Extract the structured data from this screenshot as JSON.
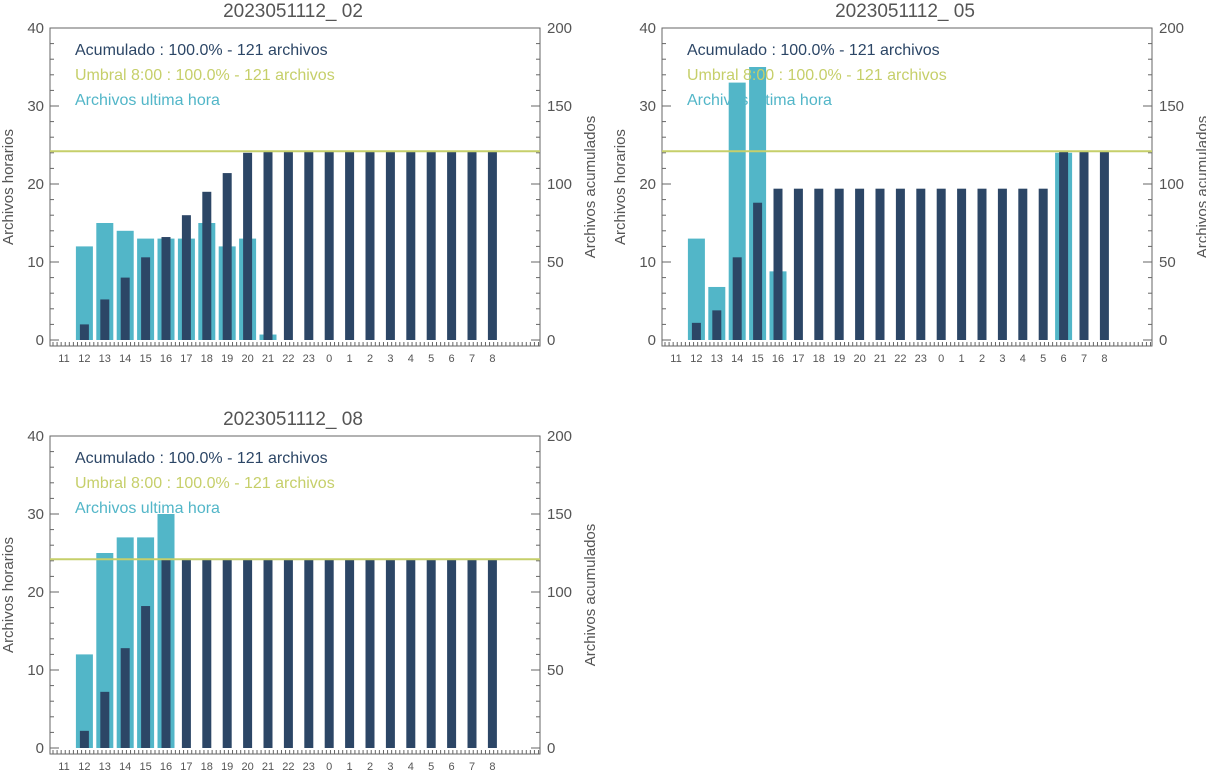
{
  "colors": {
    "hourly": "#52b6c8",
    "accumulated": "#2c4666",
    "threshold": "#c6cf6a",
    "axis": "#666666",
    "text": "#555555"
  },
  "chart_data": [
    {
      "type": "bar",
      "title": "2023051112_ 02",
      "ylabel_left": "Archivos horarios",
      "ylabel_right": "Archivos acumulados",
      "ylim_left": [
        0,
        40
      ],
      "ylim_right": [
        0,
        200
      ],
      "yticks_left": [
        "0",
        "10",
        "20",
        "30",
        "40"
      ],
      "yticks_right": [
        "0",
        "50",
        "100",
        "150",
        "200"
      ],
      "categories": [
        "11",
        "12",
        "13",
        "14",
        "15",
        "16",
        "17",
        "18",
        "19",
        "20",
        "21",
        "22",
        "23",
        "0",
        "1",
        "2",
        "3",
        "4",
        "5",
        "6",
        "7",
        "8"
      ],
      "legend": [
        {
          "text": "Acumulado : 100.0% - 121 archivos",
          "color": "accumulated"
        },
        {
          "text": "Umbral 8:00 : 100.0% - 121 archivos",
          "color": "threshold"
        },
        {
          "text": "Archivos ultima hora",
          "color": "hourly"
        }
      ],
      "threshold": 121,
      "series": [
        {
          "values": [
            0,
            12,
            15,
            14,
            13,
            13,
            13,
            15,
            12,
            13,
            0.7,
            0,
            0,
            0,
            0,
            0,
            0,
            0,
            0,
            0,
            0,
            0
          ]
        },
        {
          "values": [
            0,
            10,
            26,
            40,
            53,
            66,
            80,
            95,
            107,
            120,
            121,
            121,
            121,
            121,
            121,
            121,
            121,
            121,
            121,
            121,
            121,
            121
          ]
        }
      ]
    },
    {
      "type": "bar",
      "title": "2023051112_ 05",
      "ylabel_left": "Archivos horarios",
      "ylabel_right": "Archivos acumulados",
      "ylim_left": [
        0,
        40
      ],
      "ylim_right": [
        0,
        200
      ],
      "yticks_left": [
        "0",
        "10",
        "20",
        "30",
        "40"
      ],
      "yticks_right": [
        "0",
        "50",
        "100",
        "150",
        "200"
      ],
      "categories": [
        "11",
        "12",
        "13",
        "14",
        "15",
        "16",
        "17",
        "18",
        "19",
        "20",
        "21",
        "22",
        "23",
        "0",
        "1",
        "2",
        "3",
        "4",
        "5",
        "6",
        "7",
        "8"
      ],
      "legend": [
        {
          "text": "Acumulado : 100.0% - 121 archivos",
          "color": "accumulated"
        },
        {
          "text": "Umbral 8:00 : 100.0% - 121 archivos",
          "color": "threshold"
        },
        {
          "text": "Archivos ultima hora",
          "color": "hourly"
        }
      ],
      "threshold": 121,
      "series": [
        {
          "values": [
            0,
            13,
            6.8,
            33,
            35,
            8.8,
            0,
            0,
            0,
            0,
            0,
            0,
            0,
            0,
            0,
            0,
            0,
            0,
            0,
            24,
            0,
            0
          ]
        },
        {
          "values": [
            0,
            11,
            19,
            53,
            88,
            97,
            97,
            97,
            97,
            97,
            97,
            97,
            97,
            97,
            97,
            97,
            97,
            97,
            97,
            121,
            121,
            121
          ]
        }
      ]
    },
    {
      "type": "bar",
      "title": "2023051112_ 08",
      "ylabel_left": "Archivos horarios",
      "ylabel_right": "Archivos acumulados",
      "ylim_left": [
        0,
        40
      ],
      "ylim_right": [
        0,
        200
      ],
      "yticks_left": [
        "0",
        "10",
        "20",
        "30",
        "40"
      ],
      "yticks_right": [
        "0",
        "50",
        "100",
        "150",
        "200"
      ],
      "categories": [
        "11",
        "12",
        "13",
        "14",
        "15",
        "16",
        "17",
        "18",
        "19",
        "20",
        "21",
        "22",
        "23",
        "0",
        "1",
        "2",
        "3",
        "4",
        "5",
        "6",
        "7",
        "8"
      ],
      "legend": [
        {
          "text": "Acumulado : 100.0% - 121 archivos",
          "color": "accumulated"
        },
        {
          "text": "Umbral 8:00 : 100.0% - 121 archivos",
          "color": "threshold"
        },
        {
          "text": "Archivos ultima hora",
          "color": "hourly"
        }
      ],
      "threshold": 121,
      "series": [
        {
          "values": [
            0,
            12,
            25,
            27,
            27,
            30,
            0,
            0,
            0,
            0,
            0,
            0,
            0,
            0,
            0,
            0,
            0,
            0,
            0,
            0,
            0,
            0
          ]
        },
        {
          "values": [
            0,
            11,
            36,
            64,
            91,
            121,
            121,
            121,
            121,
            121,
            121,
            121,
            121,
            121,
            121,
            121,
            121,
            121,
            121,
            121,
            121,
            121
          ]
        }
      ]
    }
  ]
}
